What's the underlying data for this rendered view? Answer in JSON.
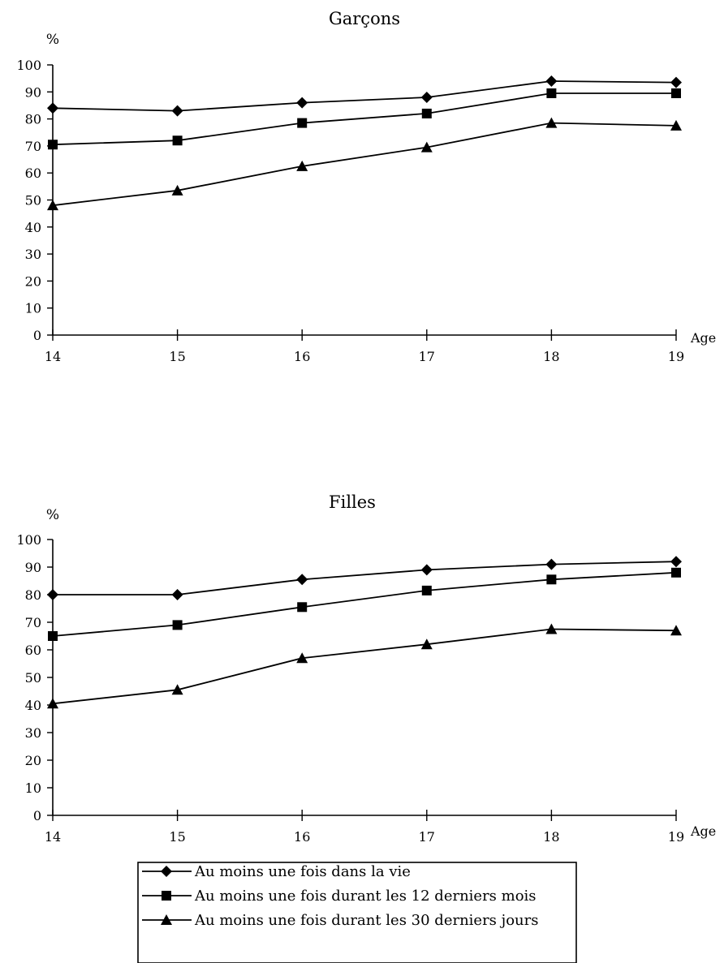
{
  "chart_data": [
    {
      "type": "line",
      "title": "Garçons",
      "ylabel": "%",
      "xlabel": "Age",
      "x": [
        14,
        15,
        16,
        17,
        18,
        19
      ],
      "xticks": [
        "14",
        "15",
        "16",
        "17",
        "18",
        "19"
      ],
      "yticks": [
        "0",
        "10",
        "20",
        "30",
        "40",
        "50",
        "60",
        "70",
        "80",
        "90",
        "100"
      ],
      "ylim": [
        0,
        100
      ],
      "grid": false,
      "series": [
        {
          "name": "Au moins une fois dans la vie",
          "marker": "diamond",
          "values": [
            84,
            83,
            86,
            88,
            94,
            93.5
          ]
        },
        {
          "name": "Au moins une fois durant les 12 derniers mois",
          "marker": "square",
          "values": [
            70.5,
            72,
            78.5,
            82,
            89.5,
            89.5
          ]
        },
        {
          "name": "Au moins une fois durant les 30 derniers jours",
          "marker": "triangle",
          "values": [
            48,
            53.5,
            62.5,
            69.5,
            78.5,
            77.5
          ]
        }
      ]
    },
    {
      "type": "line",
      "title": "Filles",
      "ylabel": "%",
      "xlabel": "Age",
      "x": [
        14,
        15,
        16,
        17,
        18,
        19
      ],
      "xticks": [
        "14",
        "15",
        "16",
        "17",
        "18",
        "19"
      ],
      "yticks": [
        "0",
        "10",
        "20",
        "30",
        "40",
        "50",
        "60",
        "70",
        "80",
        "90",
        "100"
      ],
      "ylim": [
        0,
        100
      ],
      "grid": false,
      "series": [
        {
          "name": "Au moins une fois dans la vie",
          "marker": "diamond",
          "values": [
            80,
            80,
            85.5,
            89,
            91,
            92
          ]
        },
        {
          "name": "Au moins une fois durant les 12 derniers mois",
          "marker": "square",
          "values": [
            65,
            69,
            75.5,
            81.5,
            85.5,
            88
          ]
        },
        {
          "name": "Au moins une fois durant les 30 derniers jours",
          "marker": "triangle",
          "values": [
            40.5,
            45.5,
            57,
            62,
            67.5,
            67
          ]
        }
      ]
    }
  ],
  "legend": {
    "placement": "bottom-center",
    "entries": [
      {
        "label": "Au moins une fois dans la vie",
        "marker": "diamond"
      },
      {
        "label": "Au moins une fois durant les 12 derniers mois",
        "marker": "square"
      },
      {
        "label": "Au moins une fois durant les 30 derniers jours",
        "marker": "triangle"
      }
    ]
  },
  "colors": {
    "line": "#000000",
    "background": "#ffffff"
  }
}
